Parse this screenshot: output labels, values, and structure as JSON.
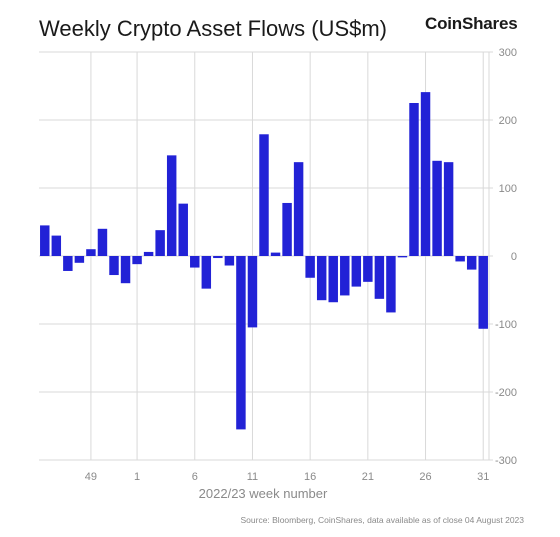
{
  "header": {
    "title": "Weekly Crypto Asset Flows (US$m)",
    "brand": "CoinShares"
  },
  "footer": {
    "source": "Source: Bloomberg, CoinShares, data available as of close 04 August 2023"
  },
  "chart_data": {
    "type": "bar",
    "title": "Weekly Crypto Asset Flows (US$m)",
    "xlabel": "2022/23 week number",
    "ylabel": "",
    "ylim": [
      -300,
      300
    ],
    "y_ticks": [
      300,
      200,
      100,
      0,
      -100,
      -200,
      -300
    ],
    "y_axis_position": "right",
    "x_ticks": [
      "49",
      "1",
      "6",
      "11",
      "16",
      "21",
      "26",
      "31"
    ],
    "grid": true,
    "bar_color": "#2222d6",
    "categories": [
      "45",
      "46",
      "47",
      "48",
      "49",
      "50",
      "51",
      "52",
      "1",
      "2",
      "3",
      "4",
      "5",
      "6",
      "7",
      "8",
      "9",
      "10",
      "11",
      "12",
      "13",
      "14",
      "15",
      "16",
      "17",
      "18",
      "19",
      "20",
      "21",
      "22",
      "23",
      "24",
      "25",
      "26",
      "27",
      "28",
      "29",
      "30",
      "31"
    ],
    "values": [
      45,
      30,
      -22,
      -10,
      10,
      40,
      -28,
      -40,
      -12,
      6,
      38,
      148,
      77,
      -17,
      -48,
      -3,
      -14,
      -255,
      -105,
      179,
      5,
      78,
      138,
      -32,
      -65,
      -68,
      -58,
      -45,
      -38,
      -63,
      -83,
      -2,
      225,
      241,
      140,
      138,
      -8,
      -20,
      -107
    ]
  }
}
